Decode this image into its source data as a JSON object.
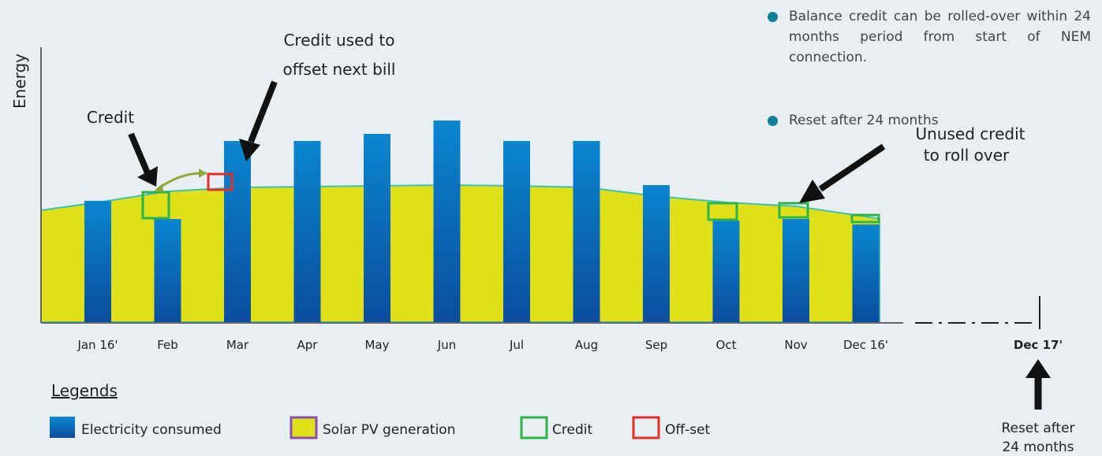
{
  "chart_data": {
    "type": "bar",
    "y_label": "Energy",
    "categories": [
      "Jan 16'",
      "Feb",
      "Mar",
      "Apr",
      "May",
      "Jun",
      "Jul",
      "Aug",
      "Sep",
      "Oct",
      "Nov",
      "Dec 16'"
    ],
    "series": [
      {
        "name": "Electricity consumed",
        "color": "#0a7fc8",
        "values": [
          154,
          131,
          230,
          230,
          239,
          256,
          230,
          230,
          174,
          129,
          131,
          124
        ]
      },
      {
        "name": "Solar PV generation",
        "color": "#e0e01a",
        "type": "area",
        "values": [
          152,
          166,
          171,
          172,
          173,
          174,
          173,
          171,
          160,
          152,
          147,
          134
        ]
      }
    ],
    "ylim": [
      0,
      350
    ],
    "end_label": "Dec 17'",
    "annotations": {
      "credit": "Credit",
      "credit_used": [
        "Credit used to",
        "offset next bill"
      ],
      "unused_credit": [
        "Unused credit",
        "to roll over"
      ],
      "reset": [
        "Reset after",
        "24 months"
      ]
    },
    "notes": [
      "Balance credit can be rolled-over within 24 months period from start of NEM connection.",
      "Reset after 24 months"
    ],
    "legend_title": "Legends",
    "legend": [
      "Electricity consumed",
      "Solar PV generation",
      "Credit",
      "Off-set"
    ]
  }
}
